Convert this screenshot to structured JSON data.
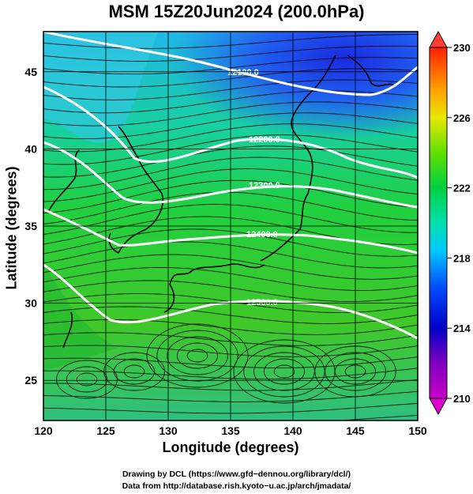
{
  "title": "MSM 15Z20Jun2024 (200.0hPa)",
  "x_axis": {
    "label": "Longitude (degrees)",
    "ticks": [
      "120",
      "125",
      "130",
      "135",
      "140",
      "145",
      "150"
    ]
  },
  "y_axis": {
    "label": "Latitude  (degrees)",
    "ticks": [
      "25",
      "30",
      "35",
      "40",
      "45"
    ]
  },
  "colorbar": {
    "ticks": [
      "230",
      "226",
      "222",
      "218",
      "214",
      "210"
    ],
    "min": 210,
    "max": 230
  },
  "contours": [
    {
      "label": "12100.0"
    },
    {
      "label": "12200.0"
    },
    {
      "label": "12300.0"
    },
    {
      "label": "12400.0"
    },
    {
      "label": "12500.0"
    }
  ],
  "credits": {
    "line1": "Drawing by DCL (https://www.gfd−dennou.org/library/dcl/)",
    "line2": "Data from http://database.rish.kyoto−u.ac.jp/arch/jmadata/"
  },
  "chart_data": {
    "type": "map",
    "projection": "equirectangular",
    "xlim": [
      120,
      150
    ],
    "ylim": [
      22.4,
      47.6
    ],
    "variable_shading": "temperature (K)",
    "shading_range": [
      210,
      230
    ],
    "contour_variable": "geopotential height (m)",
    "contour_values": [
      12100,
      12200,
      12300,
      12400,
      12500
    ],
    "vectors": "wind streamlines"
  }
}
